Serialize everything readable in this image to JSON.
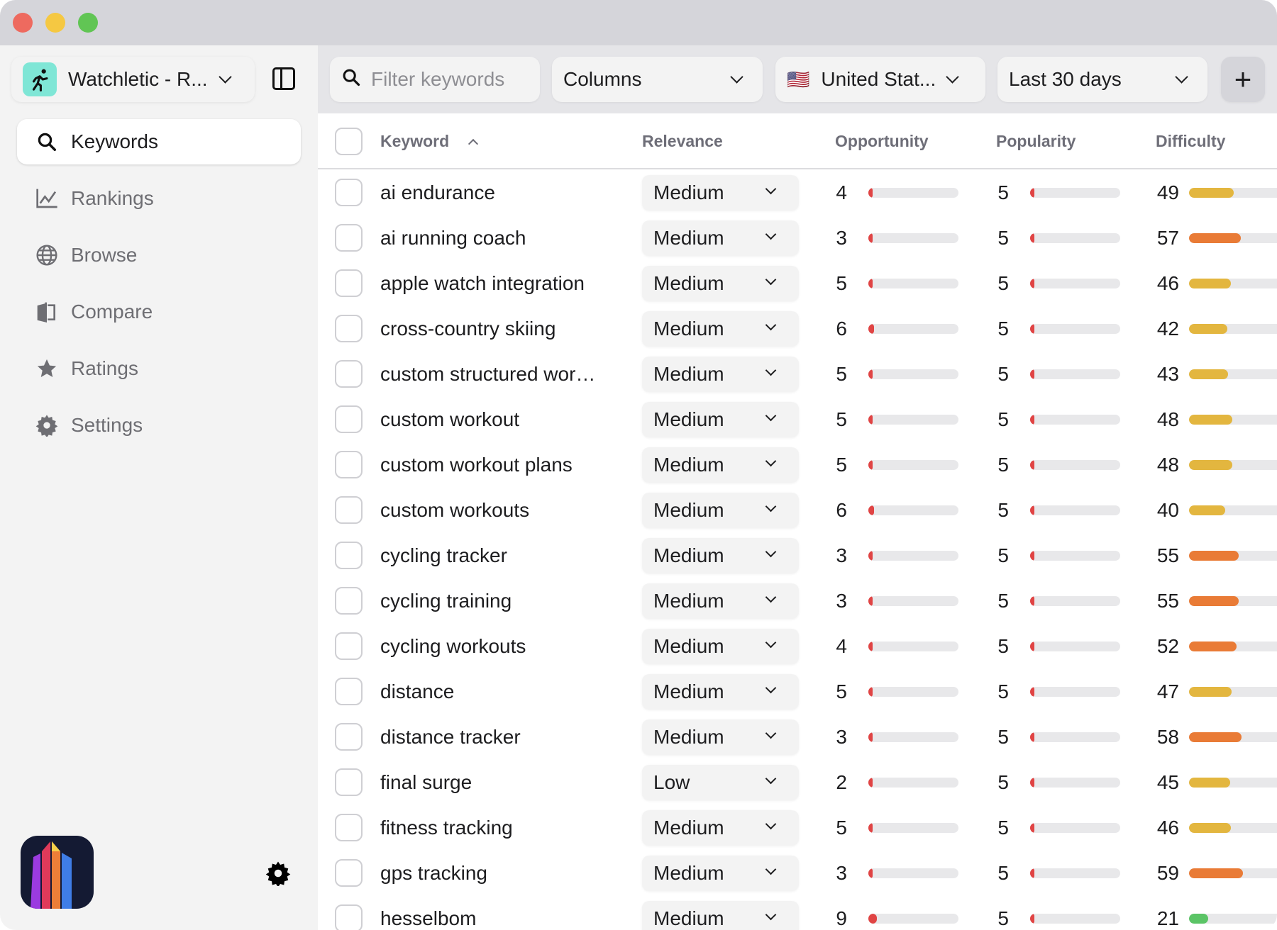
{
  "window": {
    "traffic_lights": [
      "#ee6a5f",
      "#f5c842",
      "#61c554"
    ]
  },
  "sidebar": {
    "app_name": "Watchletic - R...",
    "app_icon": "running-figure-icon",
    "items": [
      {
        "label": "Keywords",
        "icon": "search-icon",
        "selected": true
      },
      {
        "label": "Rankings",
        "icon": "chart-line-icon"
      },
      {
        "label": "Browse",
        "icon": "globe-icon"
      },
      {
        "label": "Compare",
        "icon": "compare-icon"
      },
      {
        "label": "Ratings",
        "icon": "star-icon"
      },
      {
        "label": "Settings",
        "icon": "gear-icon"
      }
    ]
  },
  "toolbar": {
    "filter_placeholder": "Filter keywords",
    "columns_label": "Columns",
    "country_label": "United Stat...",
    "country_flag": "🇺🇸",
    "date_range_label": "Last 30 days",
    "add_label": "+"
  },
  "table": {
    "headers": {
      "keyword": "Keyword",
      "relevance": "Relevance",
      "opportunity": "Opportunity",
      "popularity": "Popularity",
      "difficulty": "Difficulty"
    },
    "sort": {
      "column": "keyword",
      "direction": "ascending"
    },
    "rows": [
      {
        "keyword": "ai endurance",
        "relevance": "Medium",
        "opportunity": "4",
        "popularity": "5",
        "difficulty": "49"
      },
      {
        "keyword": "ai running coach",
        "relevance": "Medium",
        "opportunity": "3",
        "popularity": "5",
        "difficulty": "57"
      },
      {
        "keyword": "apple watch integration",
        "relevance": "Medium",
        "opportunity": "5",
        "popularity": "5",
        "difficulty": "46"
      },
      {
        "keyword": "cross-country skiing",
        "relevance": "Medium",
        "opportunity": "6",
        "popularity": "5",
        "difficulty": "42"
      },
      {
        "keyword": "custom structured wor…",
        "relevance": "Medium",
        "opportunity": "5",
        "popularity": "5",
        "difficulty": "43"
      },
      {
        "keyword": "custom workout",
        "relevance": "Medium",
        "opportunity": "5",
        "popularity": "5",
        "difficulty": "48"
      },
      {
        "keyword": "custom workout plans",
        "relevance": "Medium",
        "opportunity": "5",
        "popularity": "5",
        "difficulty": "48"
      },
      {
        "keyword": "custom workouts",
        "relevance": "Medium",
        "opportunity": "6",
        "popularity": "5",
        "difficulty": "40"
      },
      {
        "keyword": "cycling tracker",
        "relevance": "Medium",
        "opportunity": "3",
        "popularity": "5",
        "difficulty": "55"
      },
      {
        "keyword": "cycling training",
        "relevance": "Medium",
        "opportunity": "3",
        "popularity": "5",
        "difficulty": "55"
      },
      {
        "keyword": "cycling workouts",
        "relevance": "Medium",
        "opportunity": "4",
        "popularity": "5",
        "difficulty": "52"
      },
      {
        "keyword": "distance",
        "relevance": "Medium",
        "opportunity": "5",
        "popularity": "5",
        "difficulty": "47"
      },
      {
        "keyword": "distance tracker",
        "relevance": "Medium",
        "opportunity": "3",
        "popularity": "5",
        "difficulty": "58"
      },
      {
        "keyword": "final surge",
        "relevance": "Low",
        "opportunity": "2",
        "popularity": "5",
        "difficulty": "45"
      },
      {
        "keyword": "fitness tracking",
        "relevance": "Medium",
        "opportunity": "5",
        "popularity": "5",
        "difficulty": "46"
      },
      {
        "keyword": "gps tracking",
        "relevance": "Medium",
        "opportunity": "3",
        "popularity": "5",
        "difficulty": "59"
      },
      {
        "keyword": "hesselbom",
        "relevance": "Medium",
        "opportunity": "9",
        "popularity": "5",
        "difficulty": "21"
      }
    ]
  },
  "colors": {
    "low_score": "#e04444",
    "difficulty_low": "#5bc466",
    "difficulty_mid": "#e3b63f",
    "difficulty_high": "#e97b36",
    "track": "#e8e8ea"
  }
}
